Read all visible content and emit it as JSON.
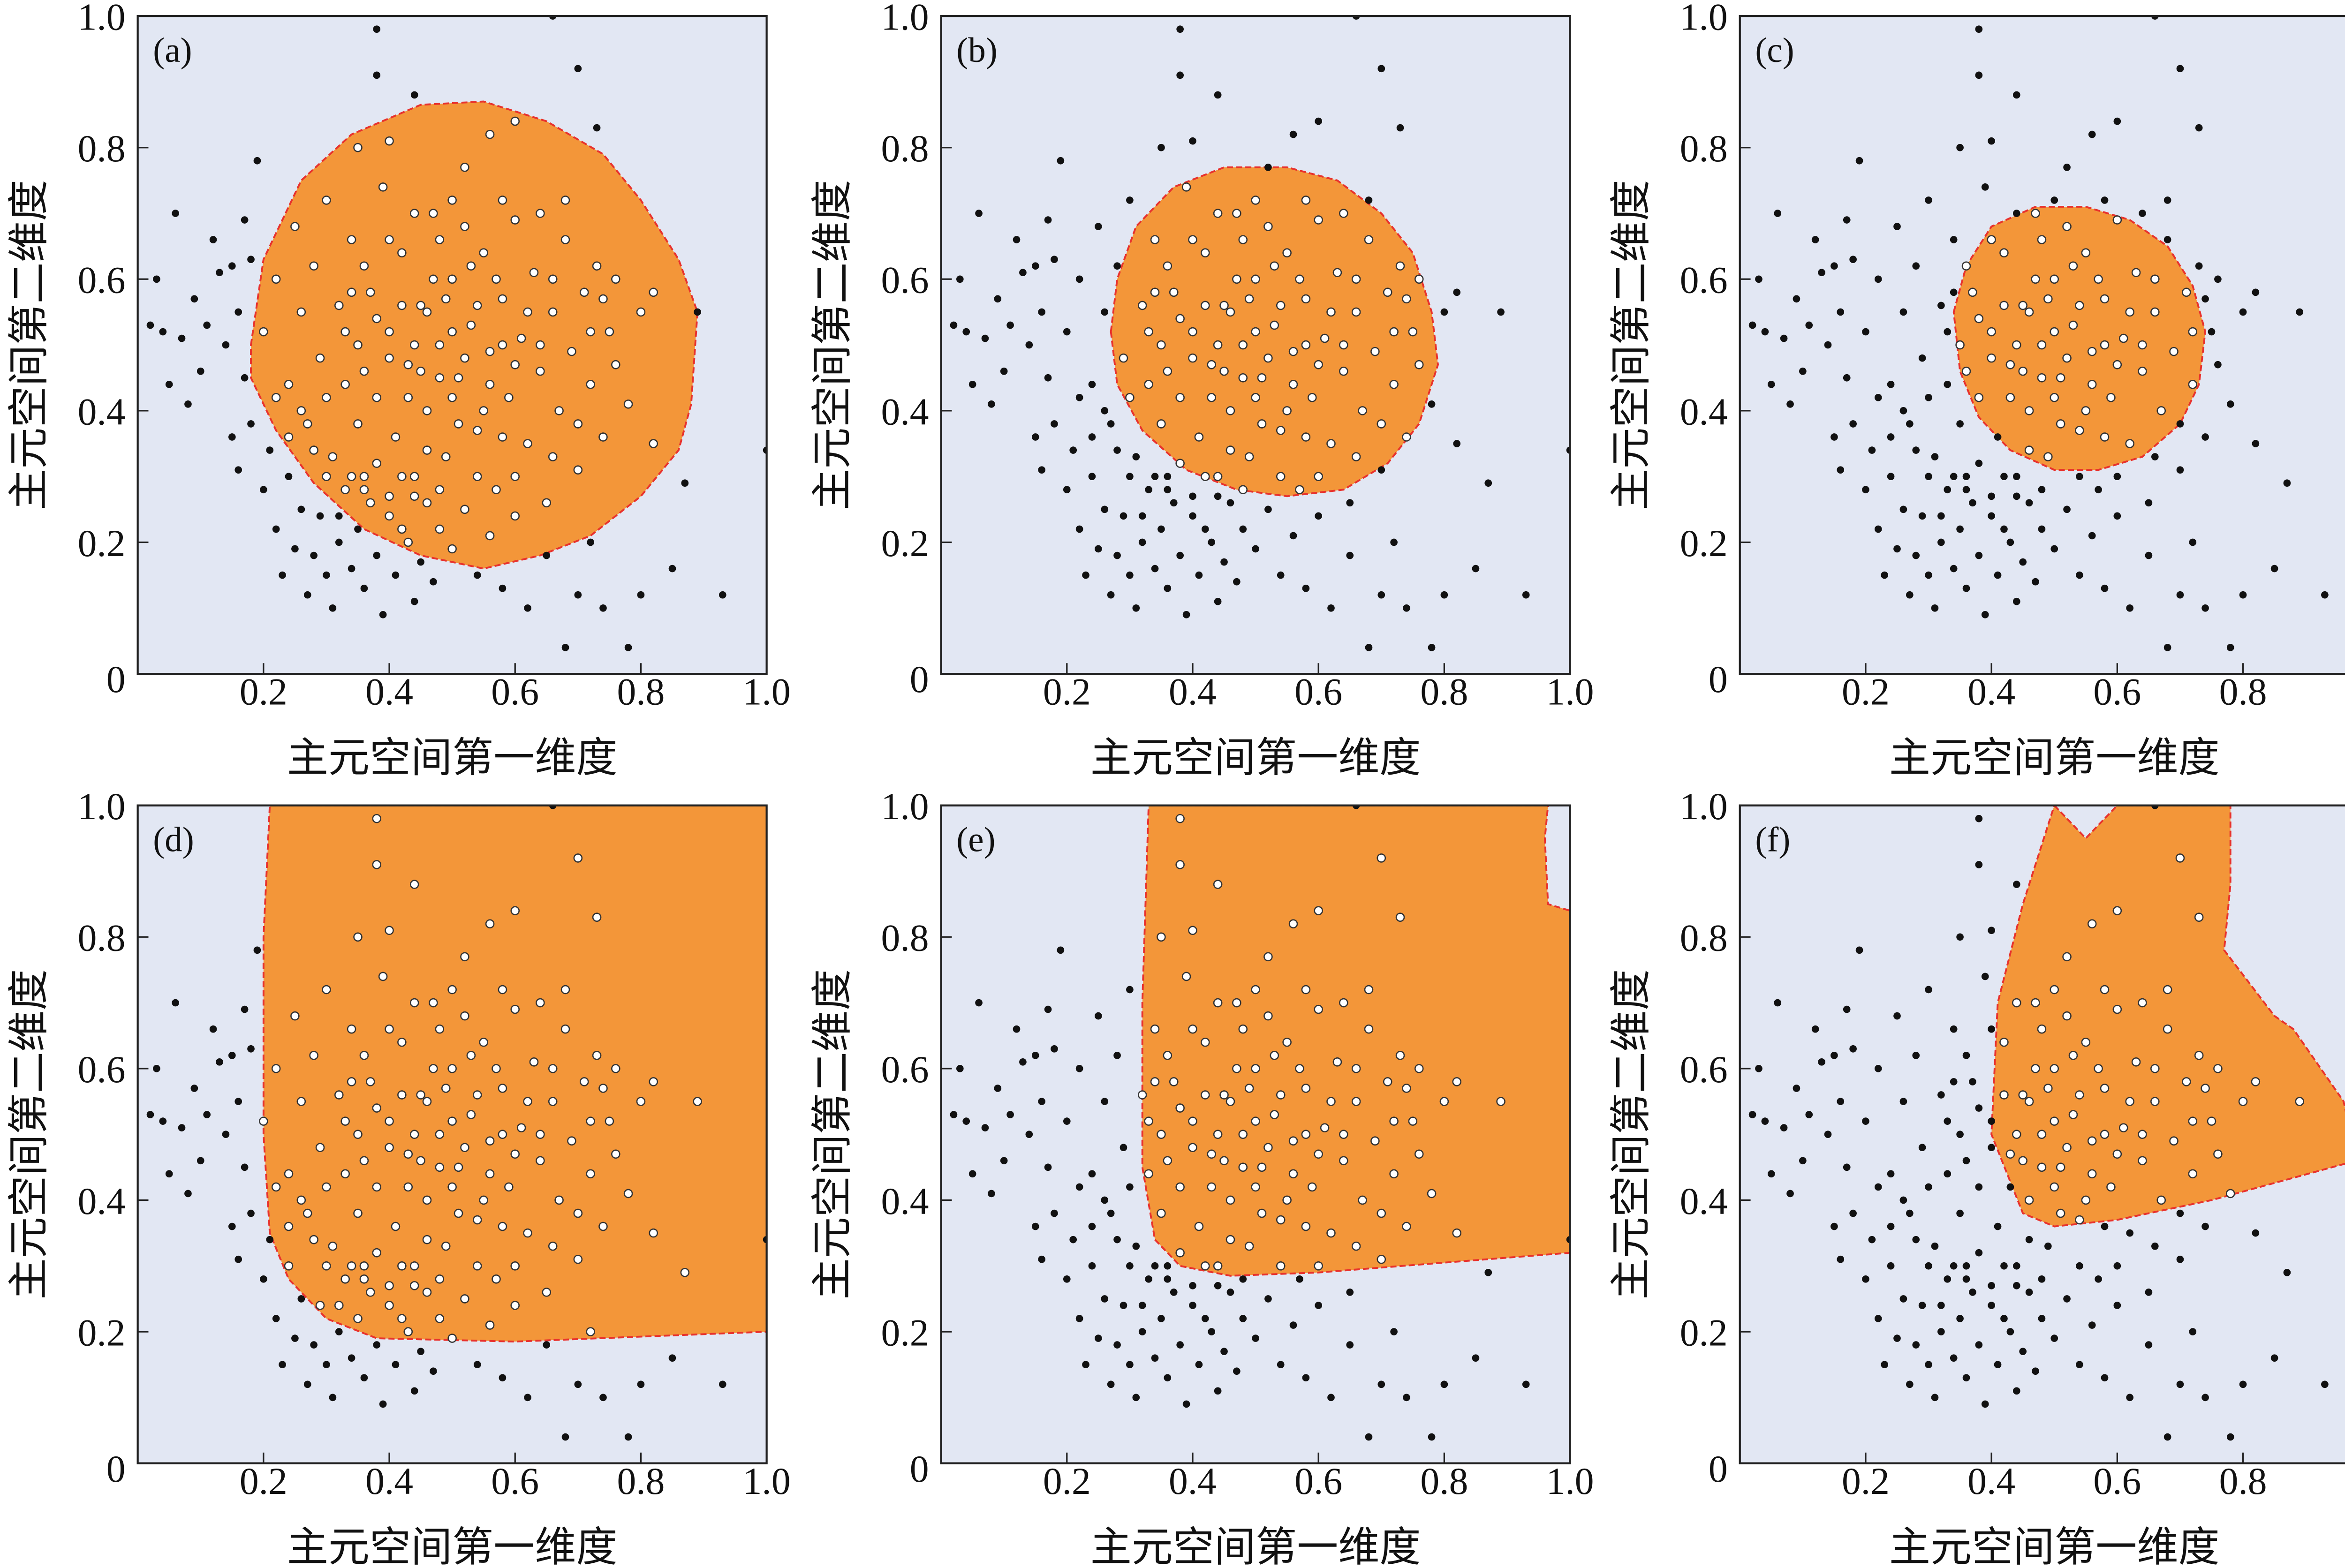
{
  "chart_data": {
    "type": "scatter",
    "xlabel": "主元空间第一维度",
    "ylabel": "主元空间第二维度",
    "xlim": [
      0,
      1.0
    ],
    "ylim": [
      0,
      1.0
    ],
    "x_ticks": [
      "0",
      "0.2",
      "0.4",
      "0.6",
      "0.8",
      "1.0"
    ],
    "y_ticks": [
      "0",
      "0.2",
      "0.4",
      "0.6",
      "0.8",
      "1.0"
    ],
    "grid": false,
    "colors": {
      "background": "#e2e7f3",
      "region": "#f39639",
      "boundary": "#e8322d",
      "outside_point": "#111111",
      "inside_point": "#ffffff"
    },
    "points": [
      [
        0.02,
        0.53
      ],
      [
        0.03,
        0.6
      ],
      [
        0.04,
        0.52
      ],
      [
        0.05,
        0.44
      ],
      [
        0.06,
        0.7
      ],
      [
        0.07,
        0.51
      ],
      [
        0.08,
        0.41
      ],
      [
        0.09,
        0.57
      ],
      [
        0.1,
        0.46
      ],
      [
        0.11,
        0.53
      ],
      [
        0.12,
        0.66
      ],
      [
        0.13,
        0.61
      ],
      [
        0.14,
        0.5
      ],
      [
        0.15,
        0.62
      ],
      [
        0.16,
        0.55
      ],
      [
        0.17,
        0.45
      ],
      [
        0.17,
        0.69
      ],
      [
        0.18,
        0.63
      ],
      [
        0.15,
        0.36
      ],
      [
        0.16,
        0.31
      ],
      [
        0.18,
        0.38
      ],
      [
        0.2,
        0.28
      ],
      [
        0.21,
        0.34
      ],
      [
        0.22,
        0.22
      ],
      [
        0.23,
        0.15
      ],
      [
        0.24,
        0.3
      ],
      [
        0.25,
        0.19
      ],
      [
        0.26,
        0.25
      ],
      [
        0.27,
        0.12
      ],
      [
        0.28,
        0.18
      ],
      [
        0.29,
        0.24
      ],
      [
        0.3,
        0.15
      ],
      [
        0.31,
        0.1
      ],
      [
        0.32,
        0.2
      ],
      [
        0.33,
        0.28
      ],
      [
        0.34,
        0.16
      ],
      [
        0.35,
        0.22
      ],
      [
        0.36,
        0.13
      ],
      [
        0.37,
        0.26
      ],
      [
        0.38,
        0.18
      ],
      [
        0.39,
        0.09
      ],
      [
        0.4,
        0.24
      ],
      [
        0.41,
        0.15
      ],
      [
        0.42,
        0.3
      ],
      [
        0.43,
        0.2
      ],
      [
        0.44,
        0.11
      ],
      [
        0.45,
        0.17
      ],
      [
        0.46,
        0.26
      ],
      [
        0.47,
        0.14
      ],
      [
        0.48,
        0.22
      ],
      [
        0.5,
        0.19
      ],
      [
        0.52,
        0.25
      ],
      [
        0.54,
        0.15
      ],
      [
        0.56,
        0.21
      ],
      [
        0.58,
        0.13
      ],
      [
        0.6,
        0.24
      ],
      [
        0.62,
        0.1
      ],
      [
        0.65,
        0.18
      ],
      [
        0.68,
        0.04
      ],
      [
        0.7,
        0.12
      ],
      [
        0.72,
        0.2
      ],
      [
        0.74,
        0.1
      ],
      [
        0.78,
        0.04
      ],
      [
        0.8,
        0.12
      ],
      [
        0.85,
        0.16
      ],
      [
        0.93,
        0.12
      ],
      [
        0.87,
        0.29
      ],
      [
        0.89,
        0.55
      ],
      [
        0.82,
        0.58
      ],
      [
        0.38,
        0.98
      ],
      [
        0.38,
        0.91
      ],
      [
        0.44,
        0.88
      ],
      [
        0.7,
        0.92
      ],
      [
        0.73,
        0.83
      ],
      [
        0.19,
        0.78
      ],
      [
        0.66,
        1.0
      ],
      [
        1.0,
        0.34
      ],
      [
        0.2,
        0.52
      ],
      [
        0.22,
        0.6
      ],
      [
        0.24,
        0.44
      ],
      [
        0.25,
        0.68
      ],
      [
        0.26,
        0.55
      ],
      [
        0.27,
        0.38
      ],
      [
        0.28,
        0.62
      ],
      [
        0.29,
        0.48
      ],
      [
        0.3,
        0.72
      ],
      [
        0.31,
        0.33
      ],
      [
        0.32,
        0.56
      ],
      [
        0.33,
        0.44
      ],
      [
        0.34,
        0.66
      ],
      [
        0.35,
        0.5
      ],
      [
        0.36,
        0.3
      ],
      [
        0.37,
        0.58
      ],
      [
        0.38,
        0.42
      ],
      [
        0.39,
        0.74
      ],
      [
        0.4,
        0.52
      ],
      [
        0.41,
        0.36
      ],
      [
        0.42,
        0.64
      ],
      [
        0.43,
        0.47
      ],
      [
        0.44,
        0.27
      ],
      [
        0.45,
        0.56
      ],
      [
        0.46,
        0.4
      ],
      [
        0.47,
        0.7
      ],
      [
        0.48,
        0.5
      ],
      [
        0.49,
        0.33
      ],
      [
        0.5,
        0.6
      ],
      [
        0.51,
        0.45
      ],
      [
        0.52,
        0.77
      ],
      [
        0.53,
        0.53
      ],
      [
        0.54,
        0.37
      ],
      [
        0.55,
        0.64
      ],
      [
        0.56,
        0.49
      ],
      [
        0.57,
        0.28
      ],
      [
        0.58,
        0.57
      ],
      [
        0.59,
        0.42
      ],
      [
        0.6,
        0.69
      ],
      [
        0.61,
        0.51
      ],
      [
        0.62,
        0.35
      ],
      [
        0.63,
        0.61
      ],
      [
        0.64,
        0.46
      ],
      [
        0.65,
        0.26
      ],
      [
        0.66,
        0.55
      ],
      [
        0.67,
        0.4
      ],
      [
        0.68,
        0.66
      ],
      [
        0.69,
        0.49
      ],
      [
        0.7,
        0.31
      ],
      [
        0.71,
        0.58
      ],
      [
        0.72,
        0.44
      ],
      [
        0.73,
        0.62
      ],
      [
        0.74,
        0.36
      ],
      [
        0.75,
        0.52
      ],
      [
        0.76,
        0.47
      ],
      [
        0.78,
        0.41
      ],
      [
        0.8,
        0.55
      ],
      [
        0.82,
        0.35
      ],
      [
        0.6,
        0.84
      ],
      [
        0.56,
        0.82
      ],
      [
        0.4,
        0.81
      ],
      [
        0.35,
        0.8
      ],
      [
        0.44,
        0.5
      ],
      [
        0.46,
        0.55
      ],
      [
        0.48,
        0.45
      ],
      [
        0.5,
        0.52
      ],
      [
        0.52,
        0.48
      ],
      [
        0.54,
        0.56
      ],
      [
        0.56,
        0.44
      ],
      [
        0.5,
        0.42
      ],
      [
        0.47,
        0.6
      ],
      [
        0.53,
        0.62
      ],
      [
        0.58,
        0.5
      ],
      [
        0.42,
        0.56
      ],
      [
        0.45,
        0.46
      ],
      [
        0.55,
        0.4
      ],
      [
        0.49,
        0.57
      ],
      [
        0.51,
        0.38
      ],
      [
        0.57,
        0.6
      ],
      [
        0.43,
        0.42
      ],
      [
        0.6,
        0.47
      ],
      [
        0.4,
        0.48
      ],
      [
        0.62,
        0.55
      ],
      [
        0.38,
        0.54
      ],
      [
        0.36,
        0.46
      ],
      [
        0.64,
        0.5
      ],
      [
        0.52,
        0.68
      ],
      [
        0.48,
        0.66
      ],
      [
        0.46,
        0.34
      ],
      [
        0.58,
        0.36
      ],
      [
        0.34,
        0.58
      ],
      [
        0.66,
        0.6
      ],
      [
        0.36,
        0.28
      ],
      [
        0.38,
        0.32
      ],
      [
        0.4,
        0.27
      ],
      [
        0.42,
        0.22
      ],
      [
        0.34,
        0.3
      ],
      [
        0.3,
        0.3
      ],
      [
        0.28,
        0.34
      ],
      [
        0.26,
        0.4
      ],
      [
        0.24,
        0.36
      ],
      [
        0.22,
        0.42
      ],
      [
        0.32,
        0.24
      ],
      [
        0.44,
        0.3
      ],
      [
        0.48,
        0.28
      ],
      [
        0.54,
        0.3
      ],
      [
        0.6,
        0.3
      ],
      [
        0.66,
        0.33
      ],
      [
        0.7,
        0.38
      ],
      [
        0.35,
        0.38
      ],
      [
        0.3,
        0.42
      ],
      [
        0.72,
        0.52
      ],
      [
        0.74,
        0.57
      ],
      [
        0.76,
        0.6
      ],
      [
        0.68,
        0.72
      ],
      [
        0.64,
        0.7
      ],
      [
        0.58,
        0.72
      ],
      [
        0.5,
        0.72
      ],
      [
        0.44,
        0.7
      ],
      [
        0.4,
        0.66
      ],
      [
        0.36,
        0.62
      ],
      [
        0.33,
        0.52
      ]
    ],
    "panels": [
      {
        "label": "(a)",
        "region": [
          [
            0.18,
            0.5
          ],
          [
            0.2,
            0.63
          ],
          [
            0.26,
            0.75
          ],
          [
            0.34,
            0.82
          ],
          [
            0.45,
            0.865
          ],
          [
            0.55,
            0.87
          ],
          [
            0.65,
            0.84
          ],
          [
            0.74,
            0.79
          ],
          [
            0.8,
            0.72
          ],
          [
            0.86,
            0.63
          ],
          [
            0.89,
            0.55
          ],
          [
            0.88,
            0.41
          ],
          [
            0.86,
            0.34
          ],
          [
            0.8,
            0.27
          ],
          [
            0.72,
            0.21
          ],
          [
            0.64,
            0.18
          ],
          [
            0.55,
            0.16
          ],
          [
            0.45,
            0.18
          ],
          [
            0.36,
            0.22
          ],
          [
            0.28,
            0.29
          ],
          [
            0.22,
            0.37
          ],
          [
            0.18,
            0.45
          ]
        ]
      },
      {
        "label": "(b)",
        "region": [
          [
            0.27,
            0.52
          ],
          [
            0.28,
            0.6
          ],
          [
            0.31,
            0.68
          ],
          [
            0.37,
            0.74
          ],
          [
            0.45,
            0.77
          ],
          [
            0.55,
            0.77
          ],
          [
            0.63,
            0.75
          ],
          [
            0.7,
            0.7
          ],
          [
            0.75,
            0.64
          ],
          [
            0.78,
            0.55
          ],
          [
            0.79,
            0.47
          ],
          [
            0.76,
            0.38
          ],
          [
            0.71,
            0.32
          ],
          [
            0.64,
            0.28
          ],
          [
            0.55,
            0.27
          ],
          [
            0.47,
            0.28
          ],
          [
            0.39,
            0.31
          ],
          [
            0.32,
            0.37
          ],
          [
            0.28,
            0.44
          ]
        ]
      },
      {
        "label": "(c)",
        "region": [
          [
            0.34,
            0.55
          ],
          [
            0.36,
            0.62
          ],
          [
            0.4,
            0.68
          ],
          [
            0.47,
            0.71
          ],
          [
            0.55,
            0.71
          ],
          [
            0.62,
            0.69
          ],
          [
            0.68,
            0.65
          ],
          [
            0.72,
            0.59
          ],
          [
            0.74,
            0.52
          ],
          [
            0.73,
            0.44
          ],
          [
            0.7,
            0.38
          ],
          [
            0.64,
            0.33
          ],
          [
            0.57,
            0.31
          ],
          [
            0.5,
            0.31
          ],
          [
            0.43,
            0.34
          ],
          [
            0.38,
            0.39
          ],
          [
            0.35,
            0.46
          ]
        ]
      },
      {
        "label": "(d)",
        "region": [
          [
            0.21,
            1.0
          ],
          [
            1.0,
            1.0
          ],
          [
            1.0,
            0.2
          ],
          [
            0.6,
            0.185
          ],
          [
            0.38,
            0.19
          ],
          [
            0.3,
            0.22
          ],
          [
            0.24,
            0.28
          ],
          [
            0.21,
            0.35
          ],
          [
            0.2,
            0.5
          ],
          [
            0.2,
            0.8
          ]
        ]
      },
      {
        "label": "(e)",
        "region": [
          [
            0.33,
            1.0
          ],
          [
            0.965,
            1.0
          ],
          [
            0.96,
            0.95
          ],
          [
            0.965,
            0.85
          ],
          [
            1.0,
            0.84
          ],
          [
            1.0,
            0.32
          ],
          [
            0.6,
            0.29
          ],
          [
            0.46,
            0.285
          ],
          [
            0.38,
            0.3
          ],
          [
            0.34,
            0.34
          ],
          [
            0.32,
            0.45
          ],
          [
            0.32,
            0.7
          ]
        ]
      },
      {
        "label": "(f)",
        "region": [
          [
            0.5,
            1.0
          ],
          [
            0.55,
            0.95
          ],
          [
            0.6,
            1.0
          ],
          [
            0.78,
            1.0
          ],
          [
            0.78,
            0.88
          ],
          [
            0.77,
            0.78
          ],
          [
            0.85,
            0.68
          ],
          [
            0.88,
            0.66
          ],
          [
            0.96,
            0.55
          ],
          [
            0.98,
            0.46
          ],
          [
            0.75,
            0.4
          ],
          [
            0.6,
            0.37
          ],
          [
            0.5,
            0.36
          ],
          [
            0.45,
            0.38
          ],
          [
            0.4,
            0.5
          ],
          [
            0.41,
            0.7
          ],
          [
            0.45,
            0.85
          ]
        ]
      }
    ]
  }
}
